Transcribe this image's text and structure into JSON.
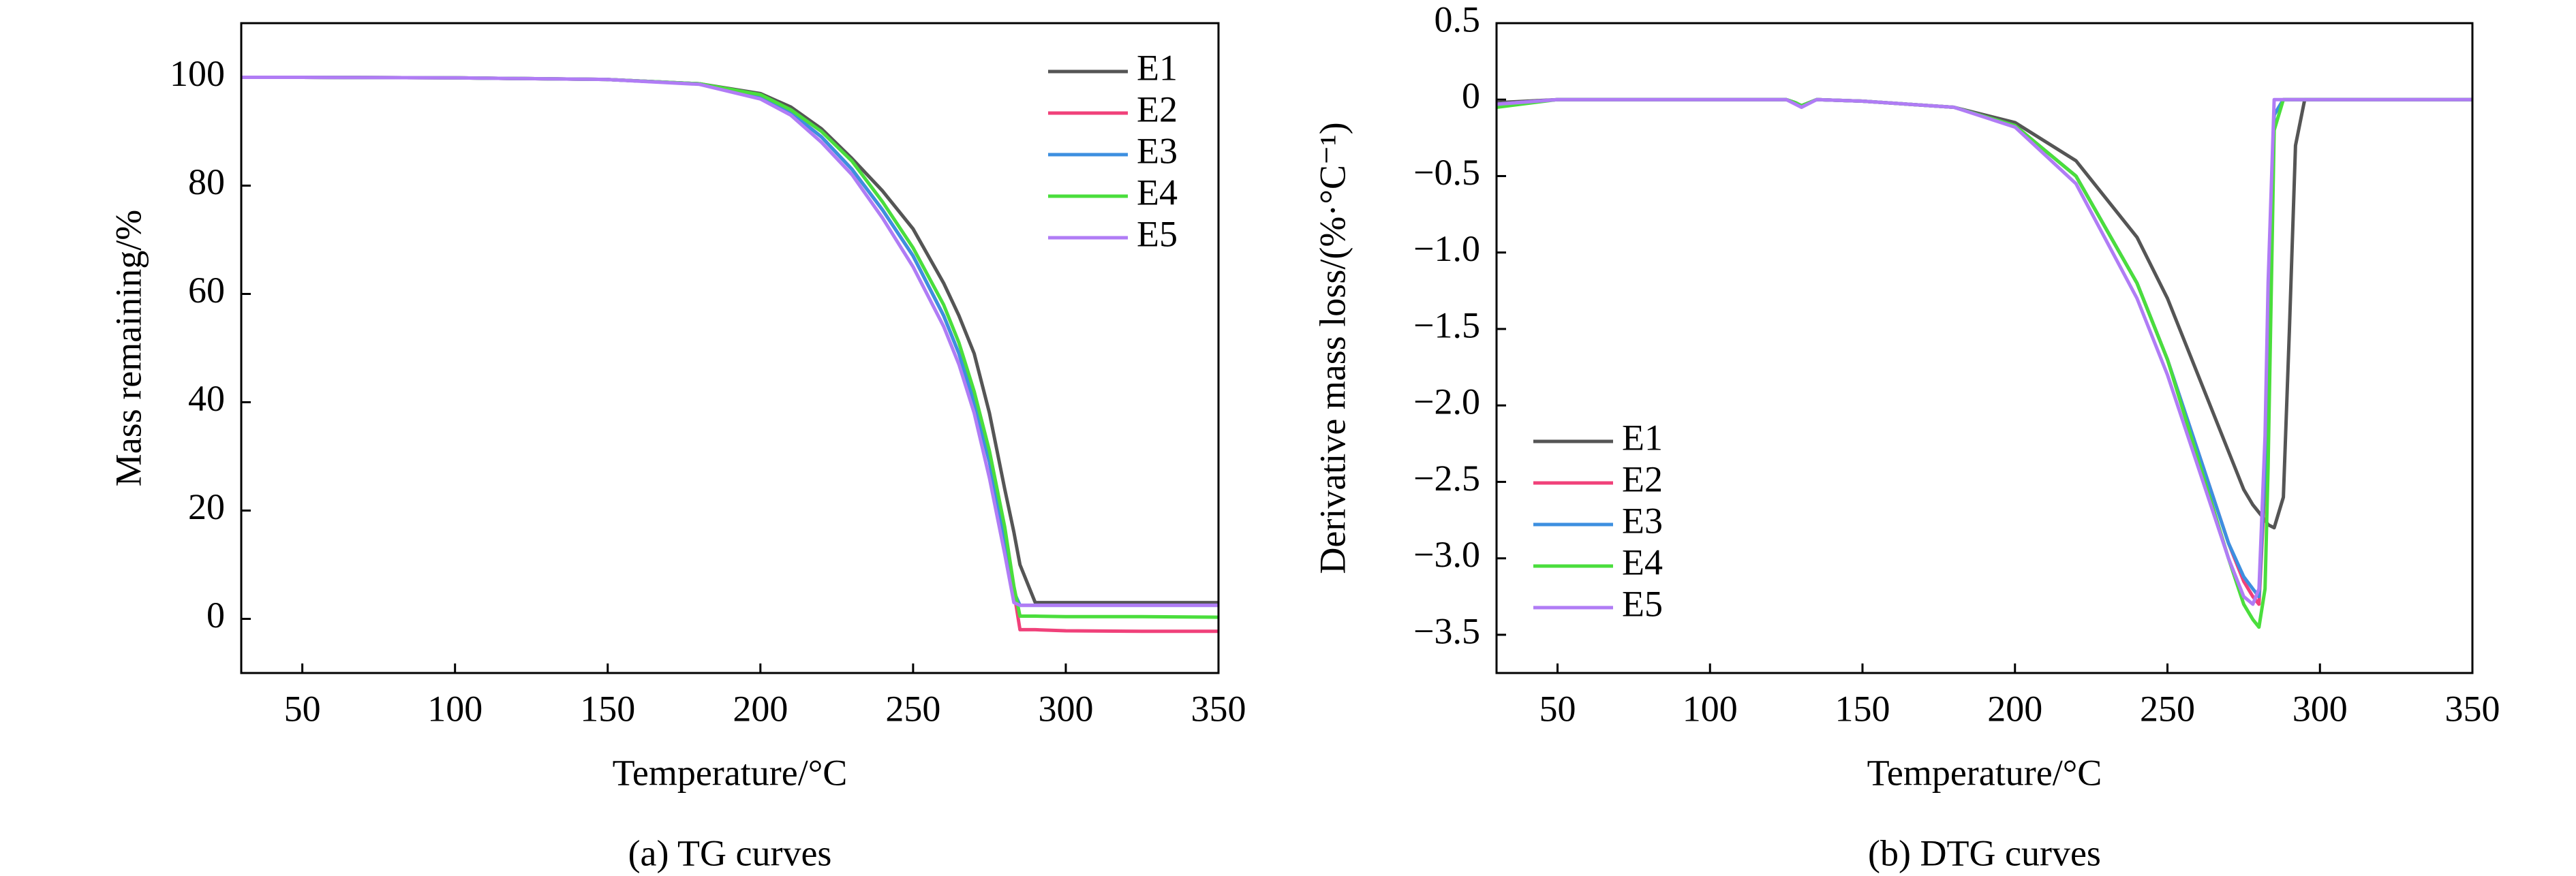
{
  "chart_data": [
    {
      "type": "line",
      "caption": "(a) TG curves",
      "xlabel": "Temperature/°C",
      "ylabel": "Mass remaining/%",
      "x": [
        30,
        50,
        100,
        150,
        180,
        200,
        210,
        220,
        230,
        240,
        250,
        260,
        265,
        270,
        275,
        280,
        283,
        285,
        290,
        300,
        325,
        350
      ],
      "xlim": [
        30,
        350
      ],
      "xticks": [
        50,
        100,
        150,
        200,
        250,
        300,
        350
      ],
      "ylim": [
        -10,
        110
      ],
      "yticks": [
        0,
        20,
        40,
        60,
        80,
        100
      ],
      "grid": false,
      "legend": "upper right",
      "series": [
        {
          "name": "E1",
          "color": "#555555",
          "values": [
            100,
            100,
            99.9,
            99.6,
            98.8,
            97,
            94.5,
            90.5,
            85,
            79,
            72,
            62,
            56,
            49,
            38,
            24,
            16,
            10,
            3,
            3,
            3,
            3
          ]
        },
        {
          "name": "E2",
          "color": "#f0417a",
          "values": [
            100,
            100,
            99.9,
            99.6,
            98.8,
            96.5,
            93.5,
            89,
            83,
            75.5,
            67,
            56,
            49,
            40,
            29,
            15,
            5,
            -2,
            -2,
            -2.2,
            -2.3,
            -2.3
          ]
        },
        {
          "name": "E3",
          "color": "#3d8fe0",
          "values": [
            100,
            100,
            99.9,
            99.6,
            98.8,
            96.5,
            93.5,
            89,
            83,
            75.5,
            67,
            56,
            49,
            40,
            29,
            15,
            5,
            2.5,
            2.5,
            2.5,
            2.5,
            2.5
          ]
        },
        {
          "name": "E4",
          "color": "#4ade3c",
          "values": [
            100,
            100,
            99.9,
            99.6,
            98.8,
            96.8,
            94,
            90,
            84.5,
            77,
            68.5,
            58,
            51,
            42,
            31,
            17,
            6,
            0.5,
            0.5,
            0.4,
            0.4,
            0.3
          ]
        },
        {
          "name": "E5",
          "color": "#b07cf5",
          "values": [
            100,
            100,
            99.9,
            99.6,
            98.7,
            96,
            93,
            88,
            82,
            74,
            65,
            54,
            47,
            38,
            26,
            12,
            3,
            2.5,
            2.5,
            2.5,
            2.5,
            2.5
          ]
        }
      ]
    },
    {
      "type": "line",
      "caption": "(b) DTG curves",
      "xlabel": "Temperature/°C",
      "ylabel": "Derivative mass loss/(%·°C⁻¹)",
      "x": [
        30,
        50,
        100,
        125,
        128,
        130,
        135,
        150,
        180,
        200,
        220,
        240,
        250,
        260,
        270,
        275,
        278,
        280,
        282,
        283,
        285,
        288,
        290,
        292,
        295,
        300,
        350
      ],
      "xlim": [
        30,
        350
      ],
      "xticks": [
        50,
        100,
        150,
        200,
        250,
        300,
        350
      ],
      "ylim": [
        -3.75,
        0.5
      ],
      "yticks": [
        0.5,
        0,
        {
          "value": -0.5,
          "label": "−0.5"
        },
        {
          "value": -1,
          "label": "−1.0"
        },
        {
          "value": -1.5,
          "label": "−1.5"
        },
        {
          "value": -2,
          "label": "−2.0"
        },
        {
          "value": -2.5,
          "label": "−2.5"
        },
        {
          "value": -3,
          "label": "−3.0"
        },
        {
          "value": -3.5,
          "label": "−3.5"
        }
      ],
      "grid": false,
      "legend": "lower left",
      "series": [
        {
          "name": "E1",
          "color": "#555555",
          "values": [
            -0.02,
            0,
            0,
            0,
            -0.02,
            -0.04,
            0,
            -0.01,
            -0.05,
            -0.15,
            -0.4,
            -0.9,
            -1.3,
            -1.8,
            -2.3,
            -2.55,
            -2.65,
            -2.7,
            -2.75,
            -2.78,
            -2.8,
            -2.6,
            -1.5,
            -0.3,
            0,
            0,
            0
          ]
        },
        {
          "name": "E2",
          "color": "#f0417a",
          "values": [
            -0.03,
            0,
            0,
            0,
            -0.02,
            -0.04,
            0,
            -0.01,
            -0.05,
            -0.17,
            -0.5,
            -1.2,
            -1.7,
            -2.3,
            -2.9,
            -3.15,
            -3.25,
            -3.3,
            -2.5,
            -1.5,
            -0.1,
            0,
            0,
            0,
            0,
            0,
            0
          ]
        },
        {
          "name": "E3",
          "color": "#3d8fe0",
          "values": [
            -0.03,
            0,
            0,
            0,
            -0.02,
            -0.04,
            0,
            -0.01,
            -0.05,
            -0.17,
            -0.5,
            -1.2,
            -1.7,
            -2.3,
            -2.9,
            -3.12,
            -3.2,
            -3.25,
            -2.4,
            -1.4,
            -0.1,
            0,
            0,
            0,
            0,
            0,
            0
          ]
        },
        {
          "name": "E4",
          "color": "#4ade3c",
          "values": [
            -0.05,
            0,
            0,
            0,
            -0.02,
            -0.04,
            0,
            -0.01,
            -0.05,
            -0.17,
            -0.5,
            -1.2,
            -1.7,
            -2.35,
            -3.0,
            -3.3,
            -3.4,
            -3.45,
            -3.2,
            -2.4,
            -0.2,
            0,
            0,
            0,
            0,
            0,
            0
          ]
        },
        {
          "name": "E5",
          "color": "#b07cf5",
          "values": [
            -0.03,
            0,
            0,
            0,
            -0.03,
            -0.05,
            0,
            -0.01,
            -0.05,
            -0.18,
            -0.55,
            -1.3,
            -1.8,
            -2.4,
            -3.0,
            -3.25,
            -3.3,
            -3.2,
            -2.2,
            -1.2,
            0,
            0,
            0,
            0,
            0,
            0,
            0
          ]
        }
      ]
    }
  ]
}
